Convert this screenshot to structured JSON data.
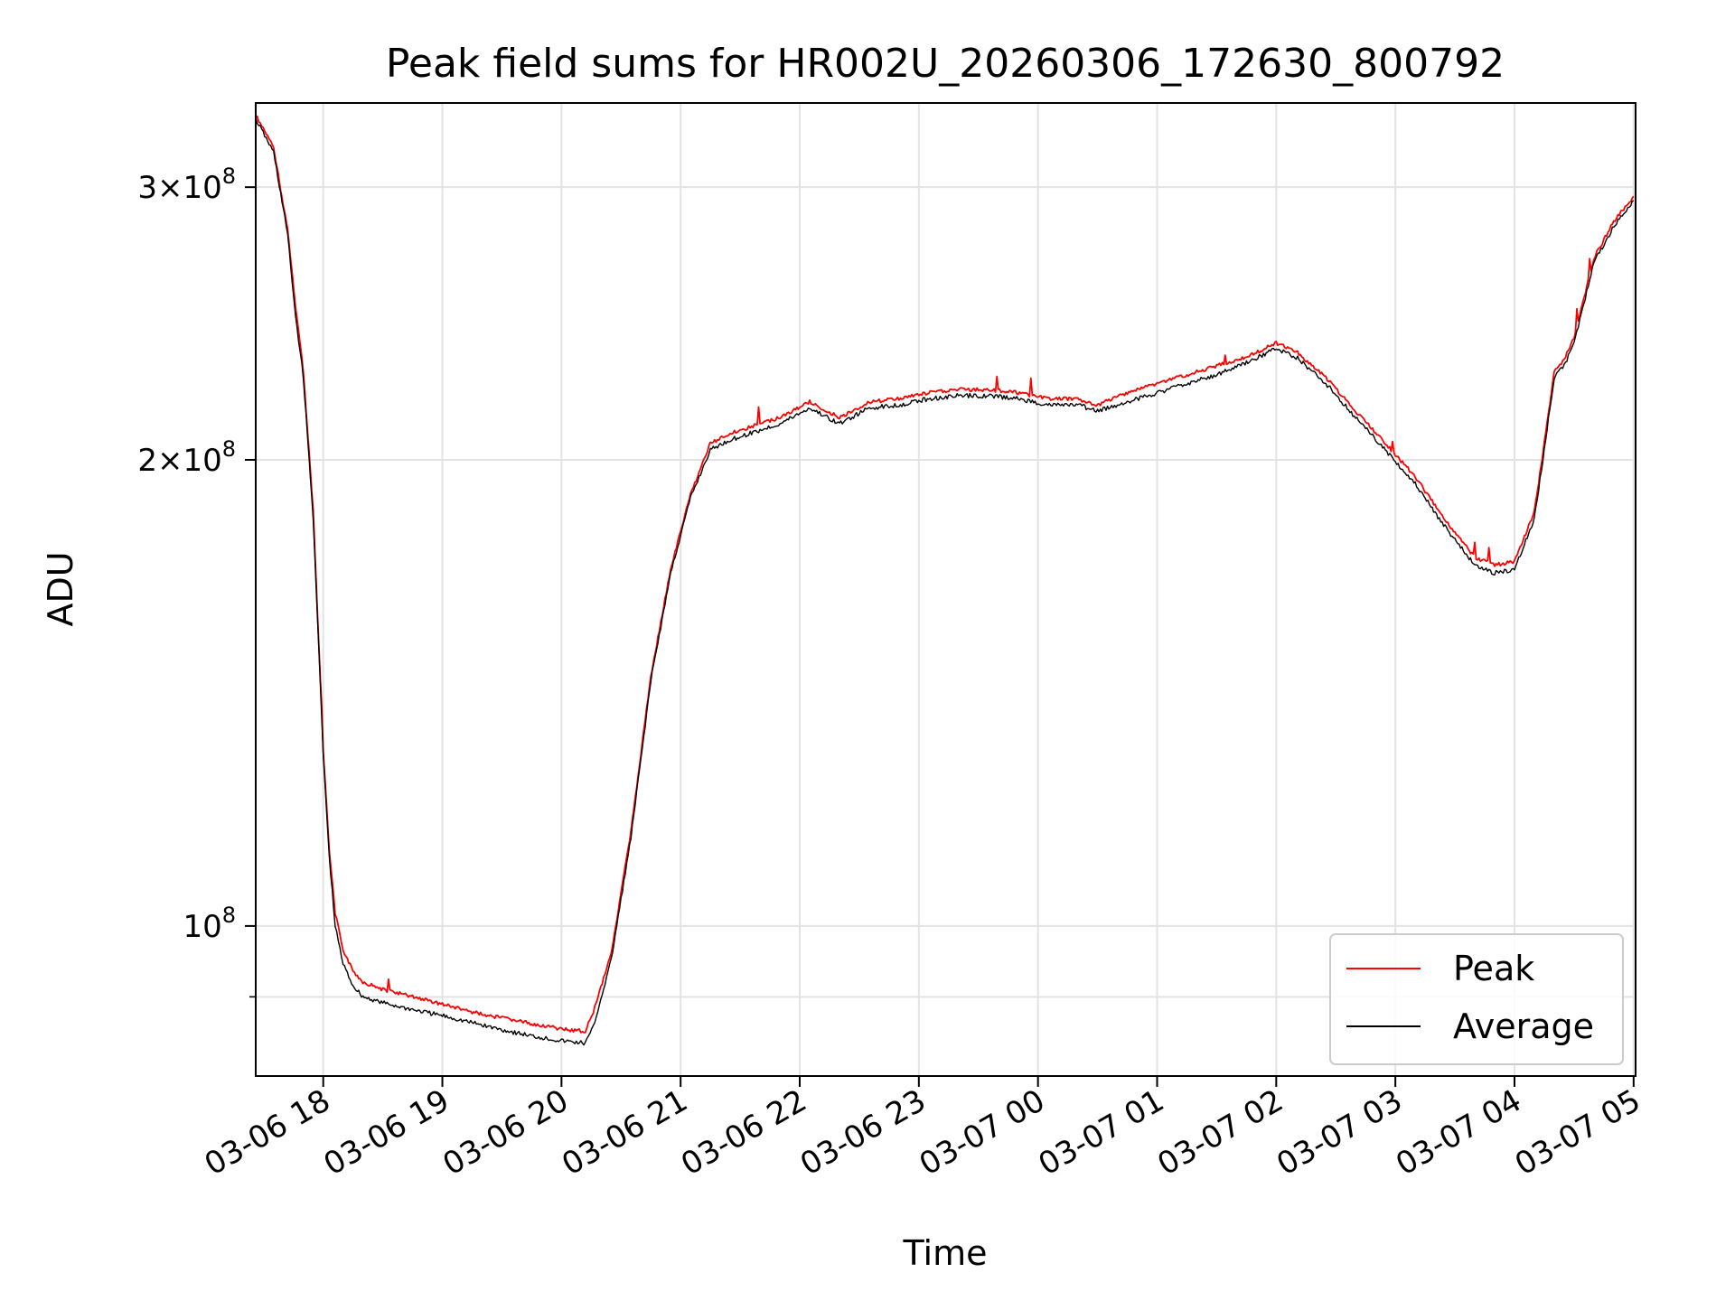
{
  "chart_data": {
    "type": "line",
    "title": "Peak field sums for HR002U_20260306_172630_800792",
    "xlabel": "Time",
    "ylabel": "ADU",
    "yscale": "log",
    "ylim": [
      80000000,
      340000000
    ],
    "xlim": [
      "2026-03-06 17:26",
      "2026-03-07 05:01"
    ],
    "grid": true,
    "legend_position": "lower-right",
    "x_ticks": [
      {
        "value": "2026-03-06 18:00",
        "label": "03-06 18"
      },
      {
        "value": "2026-03-06 19:00",
        "label": "03-06 19"
      },
      {
        "value": "2026-03-06 20:00",
        "label": "03-06 20"
      },
      {
        "value": "2026-03-06 21:00",
        "label": "03-06 21"
      },
      {
        "value": "2026-03-06 22:00",
        "label": "03-06 22"
      },
      {
        "value": "2026-03-06 23:00",
        "label": "03-06 23"
      },
      {
        "value": "2026-03-07 00:00",
        "label": "03-07 00"
      },
      {
        "value": "2026-03-07 01:00",
        "label": "03-07 01"
      },
      {
        "value": "2026-03-07 02:00",
        "label": "03-07 02"
      },
      {
        "value": "2026-03-07 03:00",
        "label": "03-07 03"
      },
      {
        "value": "2026-03-07 04:00",
        "label": "03-07 04"
      },
      {
        "value": "2026-03-07 05:00",
        "label": "03-07 05"
      }
    ],
    "y_ticks": [
      {
        "value": 100000000,
        "mant": "",
        "exp": "8"
      },
      {
        "value": 200000000,
        "mant": "2",
        "exp": "8"
      },
      {
        "value": 300000000,
        "mant": "3",
        "exp": "8"
      }
    ],
    "y_minor_ticks": [
      90000000
    ],
    "series": [
      {
        "name": "Peak",
        "color": "#ff0000",
        "x": [
          "2026-03-06 17:26",
          "2026-03-06 17:35",
          "2026-03-06 17:42",
          "2026-03-06 17:46",
          "2026-03-06 17:50",
          "2026-03-06 17:55",
          "2026-03-06 18:00",
          "2026-03-06 18:03",
          "2026-03-06 18:06",
          "2026-03-06 18:10",
          "2026-03-06 18:15",
          "2026-03-06 18:20",
          "2026-03-06 18:30",
          "2026-03-06 18:45",
          "2026-03-06 19:00",
          "2026-03-06 19:15",
          "2026-03-06 19:30",
          "2026-03-06 19:45",
          "2026-03-06 20:00",
          "2026-03-06 20:12",
          "2026-03-06 20:16",
          "2026-03-06 20:25",
          "2026-03-06 20:35",
          "2026-03-06 20:45",
          "2026-03-06 20:55",
          "2026-03-06 21:05",
          "2026-03-06 21:15",
          "2026-03-06 21:25",
          "2026-03-06 21:35",
          "2026-03-06 21:50",
          "2026-03-06 22:05",
          "2026-03-06 22:20",
          "2026-03-06 22:35",
          "2026-03-06 22:50",
          "2026-03-06 23:05",
          "2026-03-06 23:20",
          "2026-03-06 23:35",
          "2026-03-06 23:50",
          "2026-03-07 00:05",
          "2026-03-07 00:20",
          "2026-03-07 00:30",
          "2026-03-07 00:45",
          "2026-03-07 01:00",
          "2026-03-07 01:15",
          "2026-03-07 01:30",
          "2026-03-07 01:45",
          "2026-03-07 02:00",
          "2026-03-07 02:10",
          "2026-03-07 02:25",
          "2026-03-07 02:40",
          "2026-03-07 02:55",
          "2026-03-07 03:10",
          "2026-03-07 03:25",
          "2026-03-07 03:40",
          "2026-03-07 03:50",
          "2026-03-07 04:00",
          "2026-03-07 04:10",
          "2026-03-07 04:15",
          "2026-03-07 04:20",
          "2026-03-07 04:25",
          "2026-03-07 04:30",
          "2026-03-07 04:40",
          "2026-03-07 04:50",
          "2026-03-07 05:00"
        ],
        "y": [
          334000000,
          318000000,
          282000000,
          252000000,
          228000000,
          185000000,
          130000000,
          112000000,
          102000000,
          96500000,
          93500000,
          92000000,
          91000000,
          90000000,
          89000000,
          88000000,
          87200000,
          86500000,
          85800000,
          85500000,
          88000000,
          96000000,
          115000000,
          145000000,
          170000000,
          190000000,
          205000000,
          208000000,
          210000000,
          213000000,
          218000000,
          213000000,
          218000000,
          219000000,
          221000000,
          222000000,
          222000000,
          221000000,
          219000000,
          219000000,
          217000000,
          221000000,
          224000000,
          227000000,
          230000000,
          233000000,
          238000000,
          235000000,
          226000000,
          215000000,
          205000000,
          195000000,
          183000000,
          173000000,
          171000000,
          172000000,
          185000000,
          205000000,
          228000000,
          232000000,
          240000000,
          270000000,
          285000000,
          296000000
        ]
      },
      {
        "name": "Average",
        "color": "#000000",
        "x": [
          "2026-03-06 17:26",
          "2026-03-06 17:35",
          "2026-03-06 17:42",
          "2026-03-06 17:46",
          "2026-03-06 17:50",
          "2026-03-06 17:55",
          "2026-03-06 18:00",
          "2026-03-06 18:03",
          "2026-03-06 18:06",
          "2026-03-06 18:10",
          "2026-03-06 18:15",
          "2026-03-06 18:20",
          "2026-03-06 18:30",
          "2026-03-06 18:45",
          "2026-03-06 19:00",
          "2026-03-06 19:15",
          "2026-03-06 19:30",
          "2026-03-06 19:45",
          "2026-03-06 20:00",
          "2026-03-06 20:12",
          "2026-03-06 20:16",
          "2026-03-06 20:25",
          "2026-03-06 20:35",
          "2026-03-06 20:45",
          "2026-03-06 20:55",
          "2026-03-06 21:05",
          "2026-03-06 21:15",
          "2026-03-06 21:25",
          "2026-03-06 21:35",
          "2026-03-06 21:50",
          "2026-03-06 22:05",
          "2026-03-06 22:20",
          "2026-03-06 22:35",
          "2026-03-06 22:50",
          "2026-03-06 23:05",
          "2026-03-06 23:20",
          "2026-03-06 23:35",
          "2026-03-06 23:50",
          "2026-03-07 00:05",
          "2026-03-07 00:20",
          "2026-03-07 00:30",
          "2026-03-07 00:45",
          "2026-03-07 01:00",
          "2026-03-07 01:15",
          "2026-03-07 01:30",
          "2026-03-07 01:45",
          "2026-03-07 02:00",
          "2026-03-07 02:10",
          "2026-03-07 02:25",
          "2026-03-07 02:40",
          "2026-03-07 02:55",
          "2026-03-07 03:10",
          "2026-03-07 03:25",
          "2026-03-07 03:40",
          "2026-03-07 03:50",
          "2026-03-07 04:00",
          "2026-03-07 04:10",
          "2026-03-07 04:15",
          "2026-03-07 04:20",
          "2026-03-07 04:25",
          "2026-03-07 04:30",
          "2026-03-07 04:40",
          "2026-03-07 04:50",
          "2026-03-07 05:00"
        ],
        "y": [
          332000000,
          316000000,
          280000000,
          248000000,
          226000000,
          183000000,
          129000000,
          111000000,
          100000000,
          94500000,
          91500000,
          90000000,
          89200000,
          88300000,
          87500000,
          86600000,
          85700000,
          84900000,
          84300000,
          84000000,
          86000000,
          95000000,
          114000000,
          144000000,
          169000000,
          189000000,
          203000000,
          206000000,
          208000000,
          211000000,
          216000000,
          211000000,
          216000000,
          217000000,
          219000000,
          220000000,
          220000000,
          219000000,
          217000000,
          217000000,
          215000000,
          218000000,
          221000000,
          224000000,
          227000000,
          231000000,
          236000000,
          233000000,
          224000000,
          213000000,
          203000000,
          193000000,
          181000000,
          171000000,
          169000000,
          170000000,
          183000000,
          203000000,
          226000000,
          230000000,
          238000000,
          268000000,
          283000000,
          294000000
        ]
      }
    ]
  }
}
